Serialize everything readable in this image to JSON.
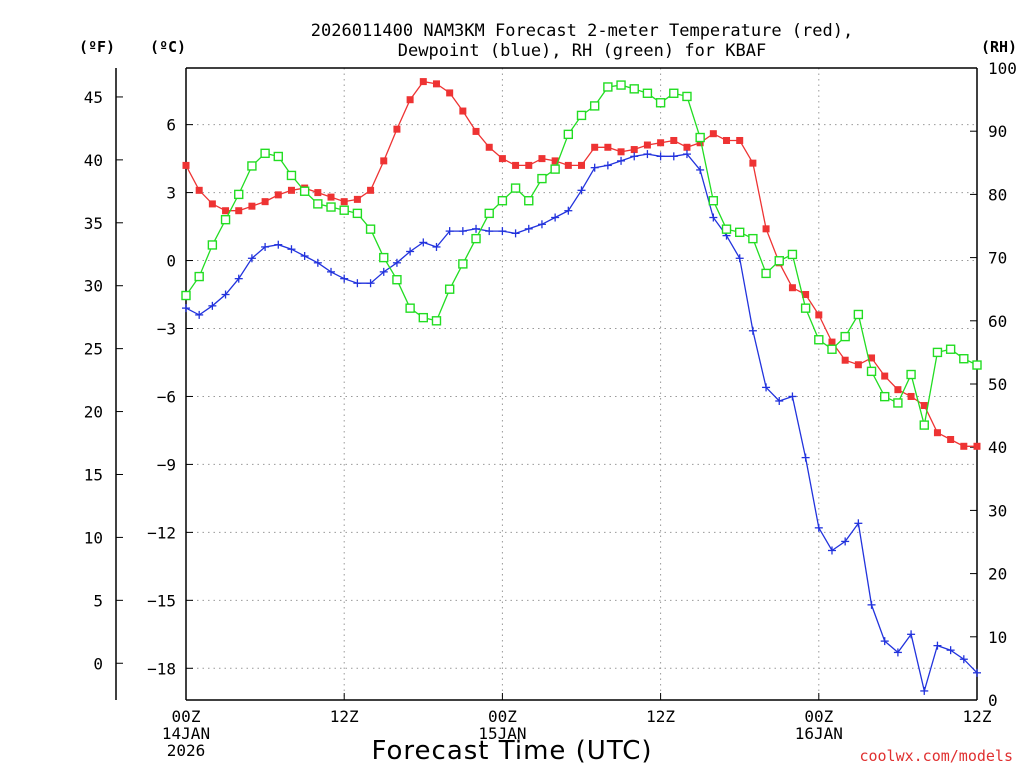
{
  "chart_data": {
    "type": "line",
    "title_line1": "2026011400 NAM3KM Forecast 2-meter Temperature (red),",
    "title_line2": "Dewpoint (blue), RH (green) for KBAF",
    "unit_f": "(ºF)",
    "unit_c": "(ºC)",
    "unit_rh": "(RH)",
    "xlabel": "Forecast Time (UTC)",
    "credit": "coolwx.com/models",
    "xlim": [
      0,
      60
    ],
    "ylim_c": [
      -19.4,
      8.5
    ],
    "ylim_rh": [
      0,
      100
    ],
    "ticks_f": [
      {
        "v": 0,
        "label": "0"
      },
      {
        "v": 5,
        "label": "5"
      },
      {
        "v": 10,
        "label": "10"
      },
      {
        "v": 15,
        "label": "15"
      },
      {
        "v": 20,
        "label": "20"
      },
      {
        "v": 25,
        "label": "25"
      },
      {
        "v": 30,
        "label": "30"
      },
      {
        "v": 35,
        "label": "35"
      },
      {
        "v": 40,
        "label": "40"
      },
      {
        "v": 45,
        "label": "45"
      }
    ],
    "ticks_c": [
      {
        "v": 6,
        "label": "6"
      },
      {
        "v": 3,
        "label": "3"
      },
      {
        "v": 0,
        "label": "0"
      },
      {
        "v": -3,
        "label": "−3"
      },
      {
        "v": -6,
        "label": "−6"
      },
      {
        "v": -9,
        "label": "−9"
      },
      {
        "v": -12,
        "label": "−12"
      },
      {
        "v": -15,
        "label": "−15"
      },
      {
        "v": -18,
        "label": "−18"
      }
    ],
    "ticks_rh": [
      {
        "v": 0,
        "label": "0"
      },
      {
        "v": 10,
        "label": "10"
      },
      {
        "v": 20,
        "label": "20"
      },
      {
        "v": 30,
        "label": "30"
      },
      {
        "v": 40,
        "label": "40"
      },
      {
        "v": 50,
        "label": "50"
      },
      {
        "v": 60,
        "label": "60"
      },
      {
        "v": 70,
        "label": "70"
      },
      {
        "v": 80,
        "label": "80"
      },
      {
        "v": 90,
        "label": "90"
      },
      {
        "v": 100,
        "label": "100"
      }
    ],
    "x_ticks": [
      {
        "v": 0,
        "l1": "00Z",
        "l2": "14JAN",
        "l3": "2026"
      },
      {
        "v": 12,
        "l1": "12Z",
        "l2": "",
        "l3": ""
      },
      {
        "v": 24,
        "l1": "00Z",
        "l2": "15JAN",
        "l3": ""
      },
      {
        "v": 36,
        "l1": "12Z",
        "l2": "",
        "l3": ""
      },
      {
        "v": 48,
        "l1": "00Z",
        "l2": "16JAN",
        "l3": ""
      },
      {
        "v": 60,
        "l1": "12Z",
        "l2": "",
        "l3": ""
      }
    ],
    "x": [
      0,
      1,
      2,
      3,
      4,
      5,
      6,
      7,
      8,
      9,
      10,
      11,
      12,
      13,
      14,
      15,
      16,
      17,
      18,
      19,
      20,
      21,
      22,
      23,
      24,
      25,
      26,
      27,
      28,
      29,
      30,
      31,
      32,
      33,
      34,
      35,
      36,
      37,
      38,
      39,
      40,
      41,
      42,
      43,
      44,
      45,
      46,
      47,
      48,
      49,
      50,
      51,
      52,
      53,
      54,
      55,
      56,
      57,
      58,
      59,
      60
    ],
    "series": [
      {
        "name": "2-meter Temperature (°C)",
        "color": "#ee3333",
        "marker": "filled-square",
        "axis": "c",
        "values": [
          4.2,
          3.1,
          2.5,
          2.2,
          2.2,
          2.4,
          2.6,
          2.9,
          3.1,
          3.2,
          3.0,
          2.8,
          2.6,
          2.7,
          3.1,
          4.4,
          5.8,
          7.1,
          7.9,
          7.8,
          7.4,
          6.6,
          5.7,
          5.0,
          4.5,
          4.2,
          4.2,
          4.5,
          4.4,
          4.2,
          4.2,
          5.0,
          5.0,
          4.8,
          4.9,
          5.1,
          5.2,
          5.3,
          5.0,
          5.2,
          5.6,
          5.3,
          5.3,
          4.3,
          1.4,
          -0.1,
          -1.2,
          -1.5,
          -2.4,
          -3.6,
          -4.4,
          -4.6,
          -4.3,
          -5.1,
          -5.7,
          -6.0,
          -6.4,
          -7.6,
          -7.9,
          -8.2,
          -8.2
        ]
      },
      {
        "name": "Dewpoint (°C)",
        "color": "#2233dd",
        "marker": "plus",
        "axis": "c",
        "values": [
          -2.1,
          -2.4,
          -2.0,
          -1.5,
          -0.8,
          0.1,
          0.6,
          0.7,
          0.5,
          0.2,
          -0.1,
          -0.5,
          -0.8,
          -1.0,
          -1.0,
          -0.5,
          -0.1,
          0.4,
          0.8,
          0.6,
          1.3,
          1.3,
          1.4,
          1.3,
          1.3,
          1.2,
          1.4,
          1.6,
          1.9,
          2.2,
          3.1,
          4.1,
          4.2,
          4.4,
          4.6,
          4.7,
          4.6,
          4.6,
          4.7,
          4.0,
          1.9,
          1.1,
          0.1,
          -3.1,
          -5.6,
          -6.2,
          -6.0,
          -8.7,
          -11.8,
          -12.8,
          -12.4,
          -11.6,
          -15.2,
          -16.8,
          -17.3,
          -16.5,
          -19.0,
          -17.0,
          -17.2,
          -17.6,
          -18.2
        ]
      },
      {
        "name": "RH (%)",
        "color": "#22dd22",
        "marker": "open-square",
        "axis": "rh",
        "values": [
          64,
          67,
          72,
          76,
          80,
          84.5,
          86.5,
          86,
          83,
          80.5,
          78.5,
          78,
          77.5,
          77,
          74.5,
          70,
          66.5,
          62,
          60.5,
          60,
          65,
          69,
          73,
          77,
          79,
          81,
          79,
          82.5,
          84,
          89.5,
          92.5,
          94,
          97,
          97.3,
          96.7,
          96,
          94.5,
          96,
          95.5,
          89,
          79,
          74.5,
          74,
          73,
          67.5,
          69.5,
          70.5,
          62,
          57,
          55.5,
          57.5,
          61,
          52,
          48,
          47,
          51.5,
          43.5,
          55,
          55.5,
          54,
          53
        ]
      }
    ]
  }
}
